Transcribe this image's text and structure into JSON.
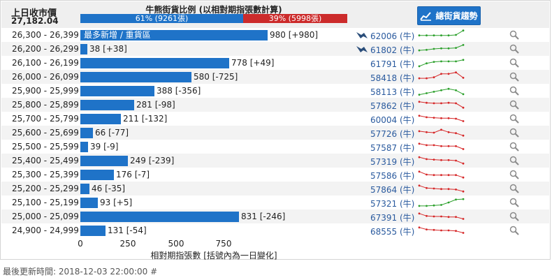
{
  "header": {
    "prev_close_label": "上日收市價",
    "prev_close_value": "27,182.04",
    "ratio_title": "牛熊街貨比例 (以相對期指張數計算)",
    "bull_label": "61% (9261張)",
    "bear_label": "39% (5998張)",
    "bull_pct": 61,
    "bear_pct": 39,
    "trend_button": "總街貨趨勢"
  },
  "rows": [
    {
      "range": "26,300 - 26,399",
      "value": 980,
      "label": "980 [+980]",
      "bar_text": "最多新增 / 重貨區",
      "code": "62006 (牛)",
      "flag": true,
      "trend": [
        0.55,
        0.55,
        0.55,
        0.55,
        0.55,
        0.5,
        0.05
      ],
      "color": "#2ca02c"
    },
    {
      "range": "26,200 - 26,299",
      "value": 38,
      "label": "38 [+38]",
      "bar_text": "",
      "code": "61802 (牛)",
      "flag": true,
      "trend": [
        0.65,
        0.6,
        0.5,
        0.45,
        0.45,
        0.4,
        0.1
      ],
      "color": "#2ca02c"
    },
    {
      "range": "26,100 - 26,199",
      "value": 778,
      "label": "778 [+49]",
      "bar_text": "",
      "code": "61791 (牛)",
      "flag": false,
      "trend": [
        0.85,
        0.55,
        0.4,
        0.35,
        0.35,
        0.35,
        0.2
      ],
      "color": "#2ca02c"
    },
    {
      "range": "26,000 - 26,099",
      "value": 580,
      "label": "580 [-725]",
      "bar_text": "",
      "code": "58418 (牛)",
      "flag": false,
      "trend": [
        0.65,
        0.65,
        0.55,
        0.2,
        0.2,
        0.05,
        0.6
      ],
      "color": "#d62728"
    },
    {
      "range": "25,900 - 25,999",
      "value": 388,
      "label": "388 [-356]",
      "bar_text": "",
      "code": "58113 (牛)",
      "flag": false,
      "trend": [
        0.9,
        0.75,
        0.6,
        0.45,
        0.3,
        0.45,
        0.85
      ],
      "color": "#2ca02c"
    },
    {
      "range": "25,800 - 25,899",
      "value": 281,
      "label": "281 [-98]",
      "bar_text": "",
      "code": "57862 (牛)",
      "flag": false,
      "trend": [
        0.2,
        0.3,
        0.35,
        0.35,
        0.3,
        0.35,
        0.8
      ],
      "color": "#d62728"
    },
    {
      "range": "25,700 - 25,799",
      "value": 211,
      "label": "211 [-132]",
      "bar_text": "",
      "code": "60004 (牛)",
      "flag": false,
      "trend": [
        0.2,
        0.35,
        0.4,
        0.45,
        0.45,
        0.5,
        0.75
      ],
      "color": "#d62728"
    },
    {
      "range": "25,600 - 25,699",
      "value": 66,
      "label": "66 [-77]",
      "bar_text": "",
      "code": "57726 (牛)",
      "flag": false,
      "trend": [
        0.35,
        0.45,
        0.5,
        0.2,
        0.45,
        0.55,
        0.8
      ],
      "color": "#d62728"
    },
    {
      "range": "25,500 - 25,599",
      "value": 39,
      "label": "39 [-9]",
      "bar_text": "",
      "code": "57587 (牛)",
      "flag": false,
      "trend": [
        0.2,
        0.35,
        0.35,
        0.45,
        0.45,
        0.45,
        0.75
      ],
      "color": "#d62728"
    },
    {
      "range": "25,400 - 25,499",
      "value": 249,
      "label": "249 [-239]",
      "bar_text": "",
      "code": "57319 (牛)",
      "flag": false,
      "trend": [
        0.15,
        0.35,
        0.4,
        0.45,
        0.45,
        0.5,
        0.8
      ],
      "color": "#d62728"
    },
    {
      "range": "25,300 - 25,399",
      "value": 176,
      "label": "176 [-7]",
      "bar_text": "",
      "code": "57586 (牛)",
      "flag": false,
      "trend": [
        0.2,
        0.5,
        0.55,
        0.55,
        0.55,
        0.55,
        0.8
      ],
      "color": "#d62728"
    },
    {
      "range": "25,200 - 25,299",
      "value": 46,
      "label": "46 [-35]",
      "bar_text": "",
      "code": "57864 (牛)",
      "flag": false,
      "trend": [
        0.2,
        0.45,
        0.5,
        0.55,
        0.55,
        0.6,
        0.8
      ],
      "color": "#d62728"
    },
    {
      "range": "25,100 - 25,199",
      "value": 93,
      "label": "93 [+5]",
      "bar_text": "",
      "code": "57321 (牛)",
      "flag": false,
      "trend": [
        0.85,
        0.85,
        0.8,
        0.75,
        0.5,
        0.2,
        0.15
      ],
      "color": "#2ca02c"
    },
    {
      "range": "25,000 - 25,099",
      "value": 831,
      "label": "831 [-246]",
      "bar_text": "",
      "code": "67391 (牛)",
      "flag": false,
      "trend": [
        0.2,
        0.45,
        0.5,
        0.5,
        0.55,
        0.55,
        0.75
      ],
      "color": "#d62728"
    },
    {
      "range": "24,900 - 24,999",
      "value": 131,
      "label": "131 [-54]",
      "bar_text": "",
      "code": "68555 (牛)",
      "flag": false,
      "trend": [
        0.2,
        0.4,
        0.45,
        0.5,
        0.5,
        0.55,
        0.75
      ],
      "color": "#d62728"
    }
  ],
  "chart_data": {
    "type": "bar",
    "orientation": "horizontal",
    "categories": [
      "26,300 - 26,399",
      "26,200 - 26,299",
      "26,100 - 26,199",
      "26,000 - 26,099",
      "25,900 - 25,999",
      "25,800 - 25,899",
      "25,700 - 25,799",
      "25,600 - 25,699",
      "25,500 - 25,599",
      "25,400 - 25,499",
      "25,300 - 25,399",
      "25,200 - 25,299",
      "25,100 - 25,199",
      "25,000 - 25,099",
      "24,900 - 24,999"
    ],
    "values": [
      980,
      38,
      778,
      580,
      388,
      281,
      211,
      66,
      39,
      249,
      176,
      46,
      93,
      831,
      131
    ],
    "changes": [
      980,
      38,
      49,
      -725,
      -356,
      -98,
      -132,
      -77,
      -9,
      -239,
      -7,
      -35,
      5,
      -246,
      -54
    ],
    "xlabel": "相對期指張數 [括號內為一日變化]",
    "xticks": [
      0,
      250,
      500,
      750
    ],
    "xlim": [
      0,
      1000
    ]
  },
  "axis": {
    "ticks": [
      "0",
      "250",
      "500",
      "750"
    ],
    "xlabel": "相對期指張數 [括號內為一日變化]"
  },
  "footer": "最後更新時間: 2018-12-03 22:00:00 #"
}
